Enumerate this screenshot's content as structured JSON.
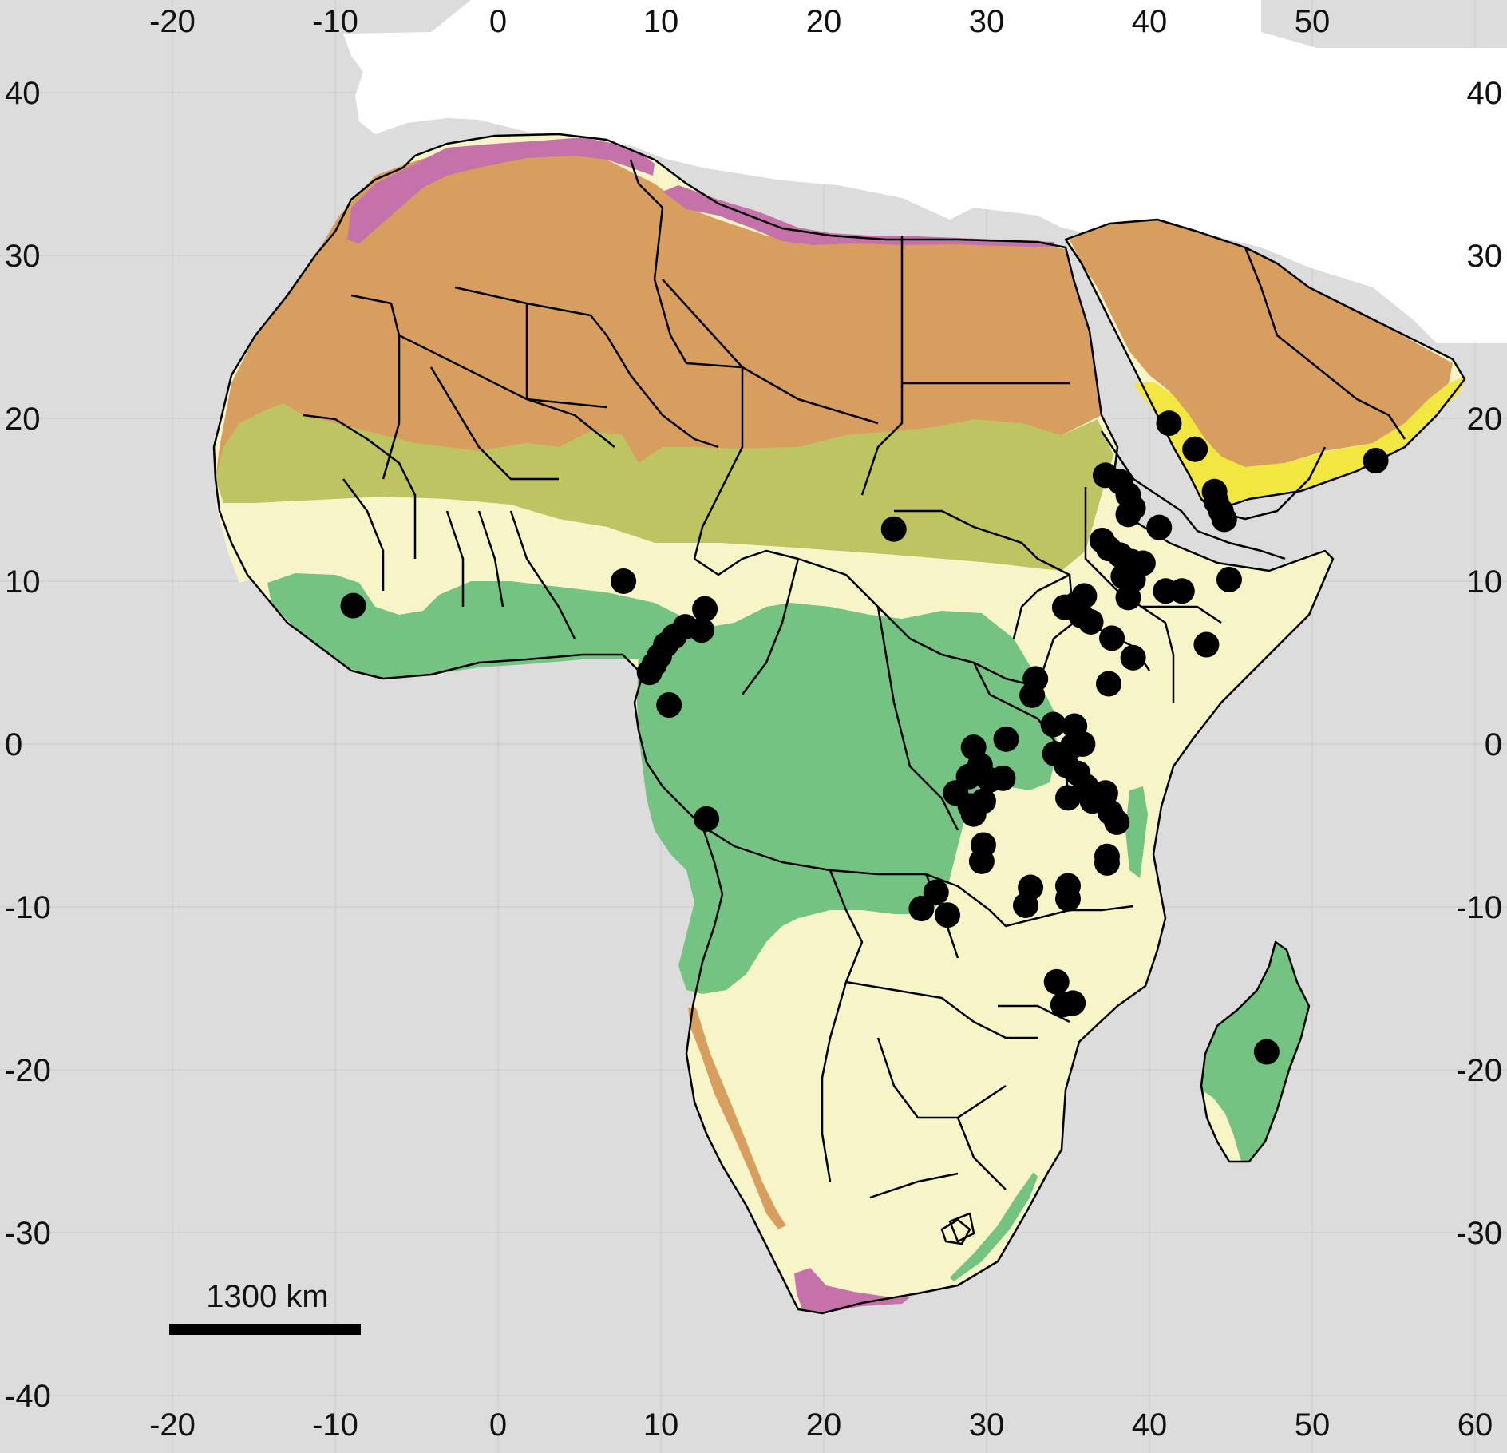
{
  "map": {
    "x_ticks": [
      "-20",
      "-10",
      "0",
      "10",
      "20",
      "30",
      "40",
      "50",
      "60"
    ],
    "y_ticks": [
      "40",
      "30",
      "20",
      "10",
      "0",
      "-10",
      "-20",
      "-30",
      "-40"
    ],
    "x_tick_values": [
      -20,
      -10,
      0,
      10,
      20,
      30,
      40,
      50,
      60
    ],
    "y_tick_values": [
      40,
      30,
      20,
      10,
      0,
      -10,
      -20,
      -30,
      -40
    ],
    "scale_bar_label": "1300 km",
    "colors": {
      "ocean": "#dcdcdc",
      "outside_land": "#ffffff",
      "desert": "#d89e5f",
      "steppe": "#bec462",
      "savanna": "#f7f5c8",
      "forest": "#75c382",
      "mediterranean": "#c572ab",
      "arabian_coast": "#f2e640",
      "points": "#000000",
      "grid": "#c8c8c8"
    },
    "occurrence_points": [
      [
        -8.9,
        8.5
      ],
      [
        7.7,
        10.0
      ],
      [
        24.3,
        13.2
      ],
      [
        12.7,
        8.3
      ],
      [
        12.5,
        7.0
      ],
      [
        11.5,
        7.2
      ],
      [
        10.8,
        6.6
      ],
      [
        10.3,
        6.1
      ],
      [
        9.9,
        5.4
      ],
      [
        9.6,
        4.9
      ],
      [
        9.3,
        4.4
      ],
      [
        10.5,
        2.4
      ],
      [
        12.8,
        -4.6
      ],
      [
        31.2,
        0.3
      ],
      [
        29.2,
        -0.2
      ],
      [
        29.6,
        -1.3
      ],
      [
        28.9,
        -2.0
      ],
      [
        30.2,
        -2.2
      ],
      [
        31.0,
        -2.1
      ],
      [
        28.1,
        -3.0
      ],
      [
        29.0,
        -3.8
      ],
      [
        29.8,
        -3.5
      ],
      [
        29.2,
        -4.3
      ],
      [
        29.8,
        -6.2
      ],
      [
        29.7,
        -7.2
      ],
      [
        26.9,
        -9.1
      ],
      [
        26.0,
        -10.1
      ],
      [
        27.6,
        -10.5
      ],
      [
        32.7,
        -8.8
      ],
      [
        32.4,
        -9.9
      ],
      [
        35.0,
        -8.7
      ],
      [
        35.0,
        -9.5
      ],
      [
        34.3,
        -14.6
      ],
      [
        34.7,
        -16.0
      ],
      [
        35.3,
        -15.9
      ],
      [
        33.0,
        4.0
      ],
      [
        32.8,
        3.0
      ],
      [
        34.1,
        1.2
      ],
      [
        35.4,
        1.1
      ],
      [
        35.9,
        0.0
      ],
      [
        34.2,
        -0.6
      ],
      [
        35.3,
        -0.1
      ],
      [
        34.9,
        -1.3
      ],
      [
        35.6,
        -1.8
      ],
      [
        35.0,
        -3.3
      ],
      [
        36.1,
        -2.6
      ],
      [
        36.5,
        -3.5
      ],
      [
        37.3,
        -3.0
      ],
      [
        37.6,
        -4.2
      ],
      [
        36.8,
        -3.3
      ],
      [
        38.0,
        -4.8
      ],
      [
        37.4,
        -6.9
      ],
      [
        37.4,
        -7.3
      ],
      [
        37.3,
        16.5
      ],
      [
        38.2,
        16.1
      ],
      [
        38.7,
        15.3
      ],
      [
        39.0,
        14.5
      ],
      [
        38.7,
        14.1
      ],
      [
        40.6,
        13.3
      ],
      [
        37.1,
        12.5
      ],
      [
        37.5,
        12.0
      ],
      [
        38.2,
        11.6
      ],
      [
        38.9,
        11.2
      ],
      [
        39.6,
        11.1
      ],
      [
        38.4,
        10.3
      ],
      [
        39.0,
        10.1
      ],
      [
        38.7,
        9.0
      ],
      [
        34.8,
        8.4
      ],
      [
        35.5,
        8.6
      ],
      [
        36.0,
        9.1
      ],
      [
        35.8,
        7.9
      ],
      [
        36.4,
        7.5
      ],
      [
        37.7,
        6.5
      ],
      [
        39.0,
        5.3
      ],
      [
        37.5,
        3.7
      ],
      [
        41.0,
        9.4
      ],
      [
        42.0,
        9.4
      ],
      [
        44.9,
        10.1
      ],
      [
        43.5,
        6.1
      ],
      [
        41.2,
        19.7
      ],
      [
        42.8,
        18.1
      ],
      [
        44.0,
        15.5
      ],
      [
        44.1,
        14.9
      ],
      [
        44.4,
        14.3
      ],
      [
        44.6,
        13.8
      ],
      [
        53.9,
        17.4
      ],
      [
        47.2,
        -18.9
      ]
    ]
  }
}
